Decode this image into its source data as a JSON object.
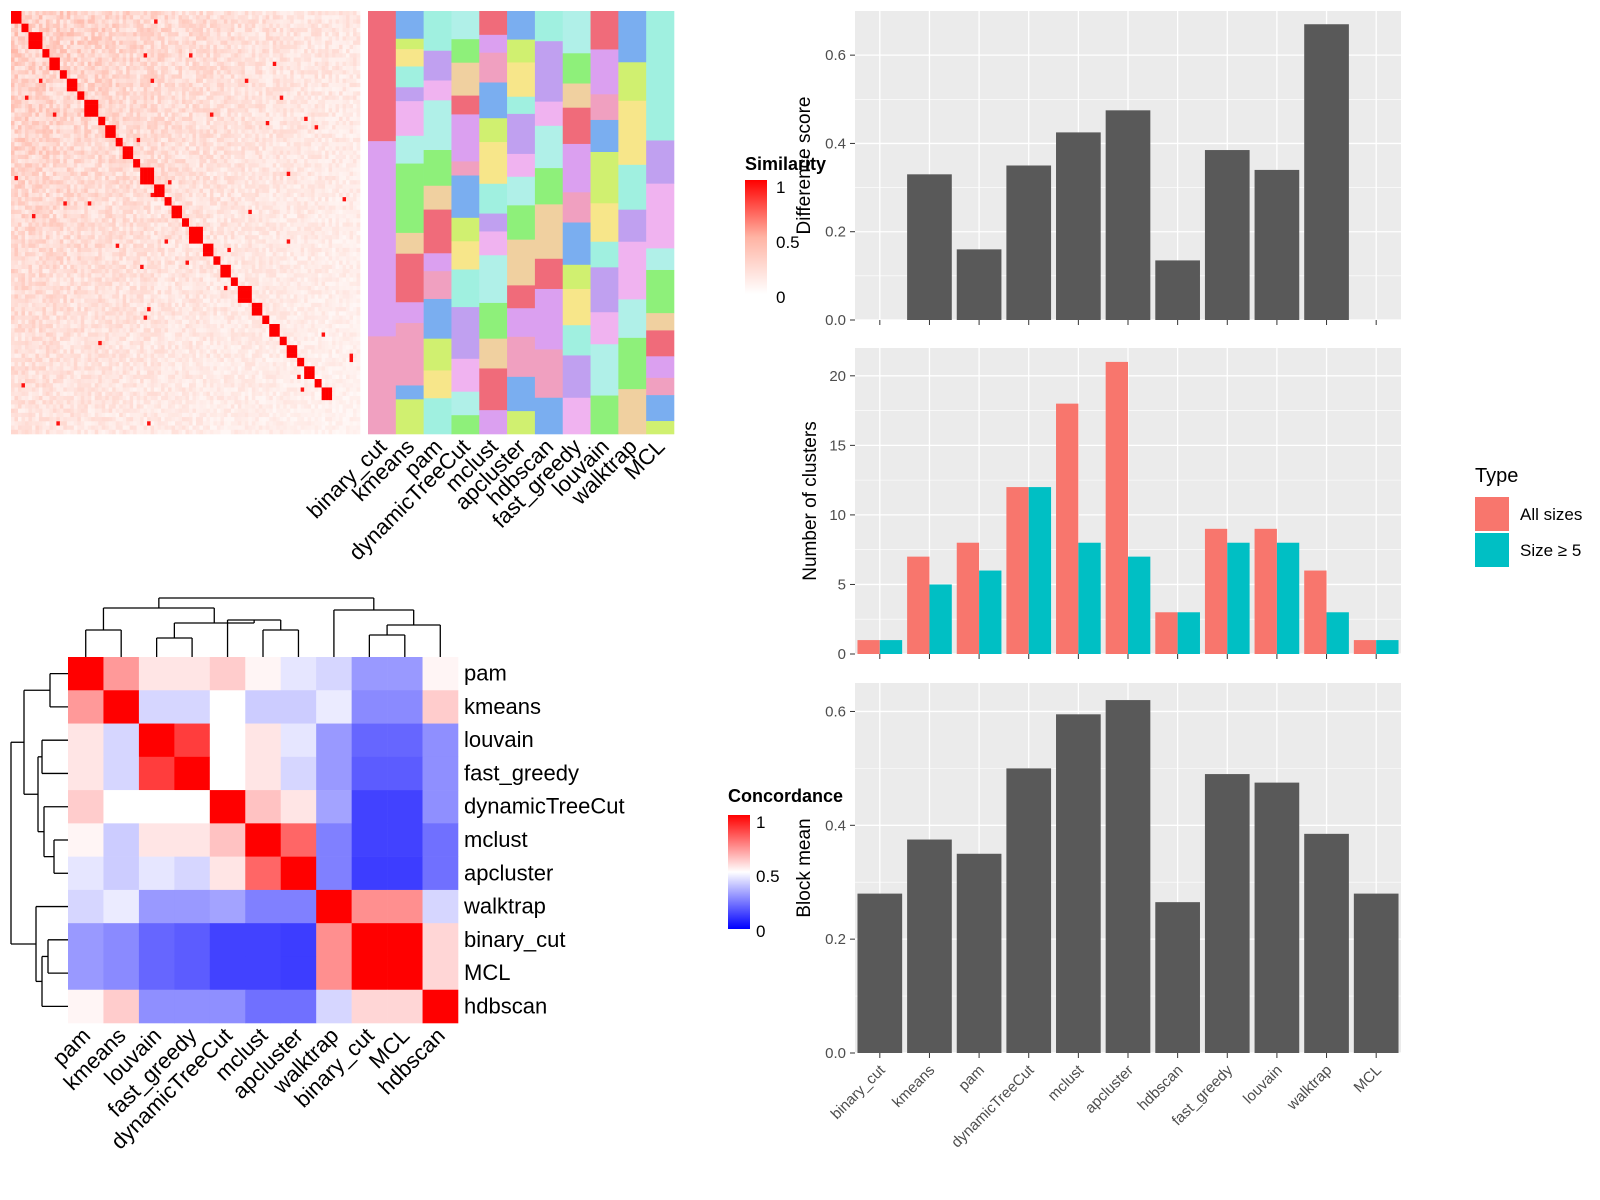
{
  "chart_data": [
    {
      "type": "heatmap",
      "panel": "similarity",
      "legend_title": "Similarity",
      "legend_ticks": [
        "1",
        "0.5",
        "0"
      ],
      "methods": [
        "binary_cut",
        "kmeans",
        "pam",
        "dynamicTreeCut",
        "mclust",
        "apcluster",
        "hdbscan",
        "fast_greedy",
        "louvain",
        "walktrap",
        "MCL"
      ]
    },
    {
      "type": "heatmap",
      "panel": "concordance",
      "legend_title": "Concordance",
      "legend_ticks": [
        "1",
        "0.5",
        "0"
      ],
      "methods": [
        "pam",
        "kmeans",
        "louvain",
        "fast_greedy",
        "dynamicTreeCut",
        "mclust",
        "apcluster",
        "walktrap",
        "binary_cut",
        "MCL",
        "hdbscan"
      ],
      "matrix": [
        [
          1,
          0.7,
          0.55,
          0.55,
          0.6,
          0.52,
          0.45,
          0.42,
          0.3,
          0.3,
          0.52
        ],
        [
          0.7,
          1,
          0.42,
          0.42,
          0.5,
          0.4,
          0.4,
          0.46,
          0.27,
          0.27,
          0.6
        ],
        [
          0.55,
          0.42,
          1,
          0.88,
          0.5,
          0.55,
          0.45,
          0.3,
          0.2,
          0.2,
          0.28
        ],
        [
          0.55,
          0.42,
          0.88,
          1,
          0.5,
          0.55,
          0.42,
          0.3,
          0.18,
          0.18,
          0.28
        ],
        [
          0.6,
          0.5,
          0.5,
          0.5,
          1,
          0.62,
          0.55,
          0.32,
          0.13,
          0.13,
          0.28
        ],
        [
          0.52,
          0.4,
          0.55,
          0.55,
          0.62,
          1,
          0.8,
          0.25,
          0.13,
          0.13,
          0.22
        ],
        [
          0.45,
          0.4,
          0.45,
          0.42,
          0.55,
          0.8,
          1,
          0.25,
          0.12,
          0.12,
          0.22
        ],
        [
          0.42,
          0.46,
          0.3,
          0.3,
          0.32,
          0.25,
          0.25,
          1,
          0.72,
          0.72,
          0.42
        ],
        [
          0.3,
          0.27,
          0.2,
          0.18,
          0.13,
          0.13,
          0.12,
          0.72,
          1,
          1,
          0.58
        ],
        [
          0.3,
          0.27,
          0.2,
          0.18,
          0.13,
          0.13,
          0.12,
          0.72,
          1,
          1,
          0.58
        ],
        [
          0.52,
          0.6,
          0.28,
          0.28,
          0.28,
          0.22,
          0.22,
          0.42,
          0.58,
          0.58,
          1
        ]
      ]
    },
    {
      "type": "bar",
      "panel": "difference",
      "ylabel": "Difference score",
      "ylim": [
        0,
        0.7
      ],
      "yticks": [
        "0.0",
        "0.2",
        "0.4",
        "0.6"
      ],
      "categories": [
        "binary_cut",
        "kmeans",
        "pam",
        "dynamicTreeCut",
        "mclust",
        "apcluster",
        "hdbscan",
        "fast_greedy",
        "louvain",
        "walktrap",
        "MCL"
      ],
      "values": [
        0,
        0.33,
        0.16,
        0.35,
        0.425,
        0.475,
        0.135,
        0.385,
        0.34,
        0.67,
        0
      ]
    },
    {
      "type": "bar",
      "panel": "clusters",
      "ylabel": "Number of clusters",
      "ylim": [
        0,
        22
      ],
      "yticks": [
        "0",
        "5",
        "10",
        "15",
        "20"
      ],
      "legend_title": "Type",
      "categories": [
        "binary_cut",
        "kmeans",
        "pam",
        "dynamicTreeCut",
        "mclust",
        "apcluster",
        "hdbscan",
        "fast_greedy",
        "louvain",
        "walktrap",
        "MCL"
      ],
      "series": [
        {
          "name": "All sizes",
          "color": "#F8766D",
          "values": [
            1,
            7,
            8,
            12,
            18,
            21,
            3,
            9,
            9,
            6,
            1
          ]
        },
        {
          "name": "Size ≥ 5",
          "color": "#00BFC4",
          "values": [
            1,
            5,
            6,
            12,
            8,
            7,
            3,
            8,
            8,
            3,
            1
          ]
        }
      ]
    },
    {
      "type": "bar",
      "panel": "block_mean",
      "ylabel": "Block mean",
      "ylim": [
        0,
        0.65
      ],
      "yticks": [
        "0.0",
        "0.2",
        "0.4",
        "0.6"
      ],
      "categories": [
        "binary_cut",
        "kmeans",
        "pam",
        "dynamicTreeCut",
        "mclust",
        "apcluster",
        "hdbscan",
        "fast_greedy",
        "louvain",
        "walktrap",
        "MCL"
      ],
      "values": [
        0.28,
        0.375,
        0.35,
        0.5,
        0.595,
        0.62,
        0.265,
        0.49,
        0.475,
        0.385,
        0.28
      ]
    }
  ]
}
